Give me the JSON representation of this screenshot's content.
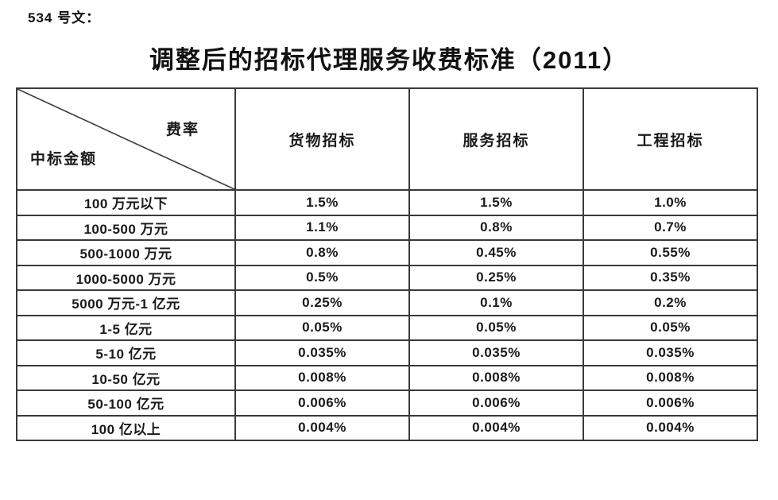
{
  "doc": {
    "doc_number": "534 号文：",
    "title": "调整后的招标代理服务收费标准（2011）"
  },
  "table": {
    "corner": {
      "top_right": "费率",
      "bottom_left": "中标金额"
    },
    "columns": [
      "货物招标",
      "服务招标",
      "工程招标"
    ],
    "rows": [
      {
        "label": "100 万元以下",
        "values": [
          "1.5%",
          "1.5%",
          "1.0%"
        ]
      },
      {
        "label": "100-500 万元",
        "values": [
          "1.1%",
          "0.8%",
          "0.7%"
        ]
      },
      {
        "label": "500-1000 万元",
        "values": [
          "0.8%",
          "0.45%",
          "0.55%"
        ]
      },
      {
        "label": "1000-5000 万元",
        "values": [
          "0.5%",
          "0.25%",
          "0.35%"
        ]
      },
      {
        "label": "5000 万元-1 亿元",
        "values": [
          "0.25%",
          "0.1%",
          "0.2%"
        ]
      },
      {
        "label": "1-5 亿元",
        "values": [
          "0.05%",
          "0.05%",
          "0.05%"
        ]
      },
      {
        "label": "5-10 亿元",
        "values": [
          "0.035%",
          "0.035%",
          "0.035%"
        ]
      },
      {
        "label": "10-50 亿元",
        "values": [
          "0.008%",
          "0.008%",
          "0.008%"
        ]
      },
      {
        "label": "50-100 亿元",
        "values": [
          "0.006%",
          "0.006%",
          "0.006%"
        ]
      },
      {
        "label": "100 亿以上",
        "values": [
          "0.004%",
          "0.004%",
          "0.004%"
        ]
      }
    ],
    "border_color": "#3a3a3a",
    "text_color": "#1a1a1a"
  }
}
